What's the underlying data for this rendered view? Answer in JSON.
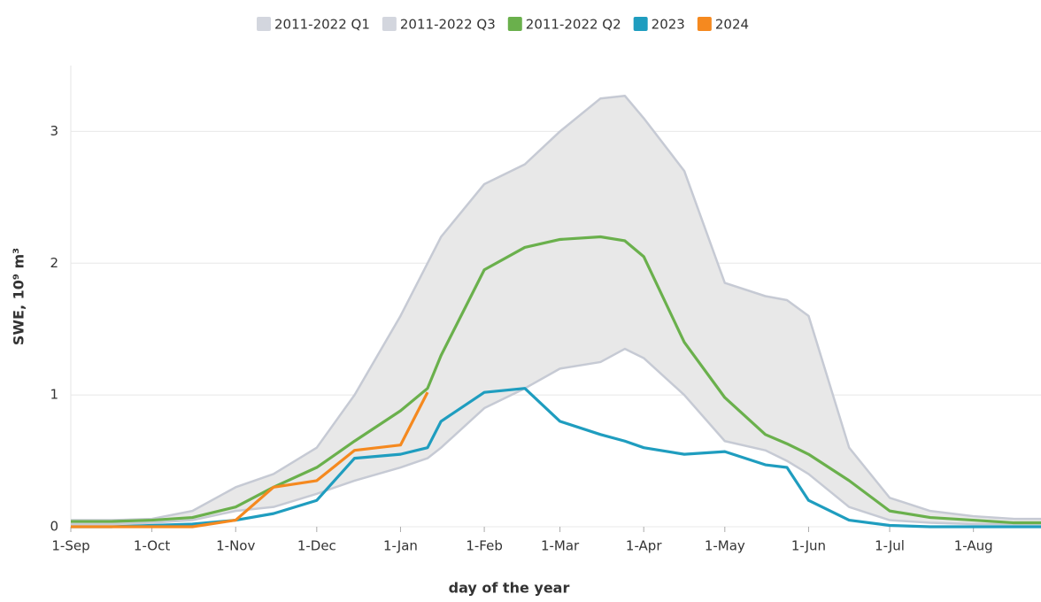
{
  "chart_data": {
    "type": "line",
    "xlabel": "day of the year",
    "ylabel": "SWE, 10⁹ m³",
    "x": [
      0,
      15,
      30,
      45,
      61,
      75,
      91,
      105,
      122,
      132,
      137,
      153,
      168,
      181,
      196,
      205,
      212,
      227,
      242,
      257,
      265,
      273,
      288,
      303,
      318,
      334,
      349,
      359
    ],
    "series": [
      {
        "name": "2011-2022 Q1",
        "color": "#d3d6de",
        "values": [
          0.02,
          0.02,
          0.03,
          0.05,
          0.12,
          0.15,
          0.25,
          0.35,
          0.45,
          0.52,
          0.6,
          0.9,
          1.05,
          1.2,
          1.25,
          1.35,
          1.28,
          1.0,
          0.65,
          0.58,
          0.5,
          0.4,
          0.15,
          0.05,
          0.03,
          0.02,
          0.02,
          0.02
        ]
      },
      {
        "name": "2011-2022 Q3",
        "color": "#d3d6de",
        "values": [
          0.05,
          0.05,
          0.06,
          0.12,
          0.3,
          0.4,
          0.6,
          1.0,
          1.6,
          2.0,
          2.2,
          2.6,
          2.75,
          3.0,
          3.25,
          3.27,
          3.1,
          2.7,
          1.85,
          1.75,
          1.72,
          1.6,
          0.6,
          0.22,
          0.12,
          0.08,
          0.06,
          0.06
        ]
      },
      {
        "name": "2011-2022 Q2",
        "color": "#6ab04c",
        "values": [
          0.04,
          0.04,
          0.05,
          0.07,
          0.15,
          0.3,
          0.45,
          0.65,
          0.88,
          1.05,
          1.3,
          1.95,
          2.12,
          2.18,
          2.2,
          2.17,
          2.05,
          1.4,
          0.98,
          0.7,
          0.63,
          0.55,
          0.35,
          0.12,
          0.07,
          0.05,
          0.03,
          0.03
        ]
      },
      {
        "name": "2023",
        "color": "#1f9dbf",
        "values": [
          0,
          0,
          0.01,
          0.02,
          0.05,
          0.1,
          0.2,
          0.52,
          0.55,
          0.6,
          0.8,
          1.02,
          1.05,
          0.8,
          0.7,
          0.65,
          0.6,
          0.55,
          0.57,
          0.47,
          0.45,
          0.2,
          0.05,
          0.01,
          0,
          0,
          0,
          0
        ]
      },
      {
        "name": "2024",
        "color": "#f5891f",
        "values": [
          0,
          0,
          0,
          0,
          0.05,
          0.3,
          0.35,
          0.58,
          0.62,
          1.02,
          null,
          null,
          null,
          null,
          null,
          null,
          null,
          null,
          null,
          null,
          null,
          null,
          null,
          null,
          null,
          null,
          null,
          null
        ]
      }
    ],
    "xlim": [
      0,
      359
    ],
    "ylim": [
      0,
      3.5
    ],
    "yticks": [
      0,
      1,
      2,
      3
    ],
    "xticks": [
      {
        "value": 0,
        "label": "1-Sep"
      },
      {
        "value": 30,
        "label": "1-Oct"
      },
      {
        "value": 61,
        "label": "1-Nov"
      },
      {
        "value": 91,
        "label": "1-Dec"
      },
      {
        "value": 122,
        "label": "1-Jan"
      },
      {
        "value": 153,
        "label": "1-Feb"
      },
      {
        "value": 181,
        "label": "1-Mar"
      },
      {
        "value": 212,
        "label": "1-Apr"
      },
      {
        "value": 242,
        "label": "1-May"
      },
      {
        "value": 273,
        "label": "1-Jun"
      },
      {
        "value": 303,
        "label": "1-Jul"
      },
      {
        "value": 334,
        "label": "1-Aug"
      }
    ],
    "grid": true,
    "band": [
      0,
      1
    ],
    "band_color": "#e8e8e8",
    "legend": "top"
  }
}
